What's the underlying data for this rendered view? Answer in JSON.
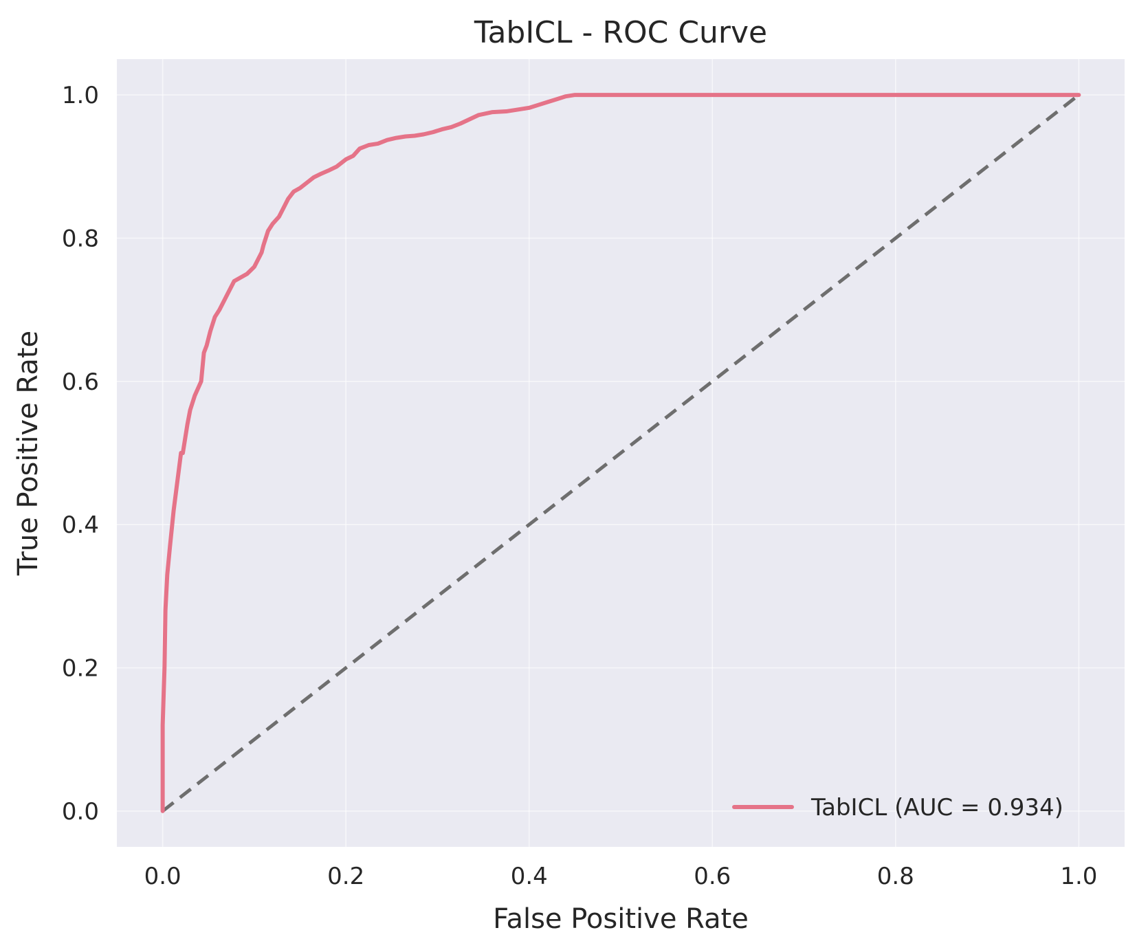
{
  "chart_data": {
    "type": "line",
    "title": "TabICL - ROC Curve",
    "xlabel": "False Positive Rate",
    "ylabel": "True Positive Rate",
    "xlim": [
      -0.05,
      1.05
    ],
    "ylim": [
      -0.05,
      1.05
    ],
    "xticks": [
      0.0,
      0.2,
      0.4,
      0.6,
      0.8,
      1.0
    ],
    "yticks": [
      0.0,
      0.2,
      0.4,
      0.6,
      0.8,
      1.0
    ],
    "xtick_labels": [
      "0.0",
      "0.2",
      "0.4",
      "0.6",
      "0.8",
      "1.0"
    ],
    "ytick_labels": [
      "0.0",
      "0.2",
      "0.4",
      "0.6",
      "0.8",
      "1.0"
    ],
    "grid": true,
    "legend_position": "lower-right",
    "colors": {
      "background": "#eaeaf2",
      "roc": "#e57388",
      "reference": "#6e6e6e"
    },
    "series": [
      {
        "name": "TabICL (AUC = 0.934)",
        "style": "solid",
        "x": [
          0.0,
          0.0,
          0.002,
          0.003,
          0.005,
          0.008,
          0.012,
          0.017,
          0.02,
          0.022,
          0.027,
          0.03,
          0.035,
          0.042,
          0.045,
          0.048,
          0.052,
          0.057,
          0.062,
          0.07,
          0.078,
          0.085,
          0.092,
          0.1,
          0.108,
          0.11,
          0.115,
          0.12,
          0.127,
          0.133,
          0.137,
          0.143,
          0.15,
          0.158,
          0.165,
          0.173,
          0.182,
          0.19,
          0.2,
          0.208,
          0.215,
          0.225,
          0.235,
          0.245,
          0.255,
          0.265,
          0.275,
          0.285,
          0.295,
          0.305,
          0.315,
          0.325,
          0.335,
          0.345,
          0.36,
          0.375,
          0.39,
          0.4,
          0.41,
          0.42,
          0.43,
          0.44,
          0.45,
          0.47,
          0.5,
          0.6,
          0.7,
          0.8,
          0.9,
          1.0
        ],
        "y": [
          0.0,
          0.12,
          0.2,
          0.28,
          0.33,
          0.37,
          0.42,
          0.47,
          0.5,
          0.5,
          0.54,
          0.56,
          0.58,
          0.6,
          0.64,
          0.65,
          0.67,
          0.69,
          0.7,
          0.72,
          0.74,
          0.745,
          0.75,
          0.76,
          0.78,
          0.79,
          0.81,
          0.82,
          0.83,
          0.845,
          0.855,
          0.865,
          0.87,
          0.878,
          0.885,
          0.89,
          0.895,
          0.9,
          0.91,
          0.915,
          0.925,
          0.93,
          0.932,
          0.937,
          0.94,
          0.942,
          0.943,
          0.945,
          0.948,
          0.952,
          0.955,
          0.96,
          0.966,
          0.972,
          0.976,
          0.977,
          0.98,
          0.982,
          0.986,
          0.99,
          0.994,
          0.998,
          1.0,
          1.0,
          1.0,
          1.0,
          1.0,
          1.0,
          1.0,
          1.0
        ]
      },
      {
        "style": "dashed",
        "x": [
          0.0,
          1.0
        ],
        "y": [
          0.0,
          1.0
        ]
      }
    ]
  }
}
